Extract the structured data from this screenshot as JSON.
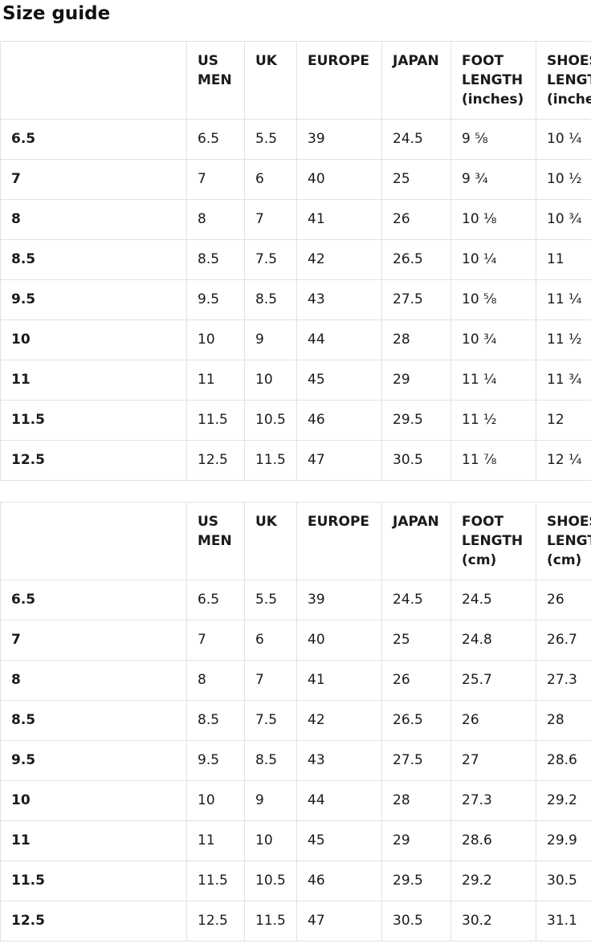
{
  "page": {
    "title": "Size guide"
  },
  "colors": {
    "background": "#ffffff",
    "text": "#1a1a1a",
    "table_border": "#e2e2e2"
  },
  "tables": [
    {
      "name": "sizes-inches",
      "headers": [
        "",
        "US MEN",
        "UK",
        "EUROPE",
        "JAPAN",
        "FOOT LENGTH (inches)",
        "SHOES LENGTH (inches)"
      ],
      "rows": [
        [
          "6.5",
          "6.5",
          "5.5",
          "39",
          "24.5",
          "9 ⅝",
          "10 ¼"
        ],
        [
          "7",
          "7",
          "6",
          "40",
          "25",
          "9 ¾",
          "10 ½"
        ],
        [
          "8",
          "8",
          "7",
          "41",
          "26",
          "10 ⅛",
          "10 ¾"
        ],
        [
          "8.5",
          "8.5",
          "7.5",
          "42",
          "26.5",
          "10 ¼",
          "11"
        ],
        [
          "9.5",
          "9.5",
          "8.5",
          "43",
          "27.5",
          "10 ⅝",
          "11 ¼"
        ],
        [
          "10",
          "10",
          "9",
          "44",
          "28",
          "10 ¾",
          "11 ½"
        ],
        [
          "11",
          "11",
          "10",
          "45",
          "29",
          "11 ¼",
          "11 ¾"
        ],
        [
          "11.5",
          "11.5",
          "10.5",
          "46",
          "29.5",
          "11 ½",
          "12"
        ],
        [
          "12.5",
          "12.5",
          "11.5",
          "47",
          "30.5",
          "11 ⅞",
          "12 ¼"
        ]
      ]
    },
    {
      "name": "sizes-cm",
      "headers": [
        "",
        "US MEN",
        "UK",
        "EUROPE",
        "JAPAN",
        "FOOT LENGTH (cm)",
        "SHOES LENGTH (cm)"
      ],
      "rows": [
        [
          "6.5",
          "6.5",
          "5.5",
          "39",
          "24.5",
          "24.5",
          "26"
        ],
        [
          "7",
          "7",
          "6",
          "40",
          "25",
          "24.8",
          "26.7"
        ],
        [
          "8",
          "8",
          "7",
          "41",
          "26",
          "25.7",
          "27.3"
        ],
        [
          "8.5",
          "8.5",
          "7.5",
          "42",
          "26.5",
          "26",
          "28"
        ],
        [
          "9.5",
          "9.5",
          "8.5",
          "43",
          "27.5",
          "27",
          "28.6"
        ],
        [
          "10",
          "10",
          "9",
          "44",
          "28",
          "27.3",
          "29.2"
        ],
        [
          "11",
          "11",
          "10",
          "45",
          "29",
          "28.6",
          "29.9"
        ],
        [
          "11.5",
          "11.5",
          "10.5",
          "46",
          "29.5",
          "29.2",
          "30.5"
        ],
        [
          "12.5",
          "12.5",
          "11.5",
          "47",
          "30.5",
          "30.2",
          "31.1"
        ]
      ]
    }
  ]
}
